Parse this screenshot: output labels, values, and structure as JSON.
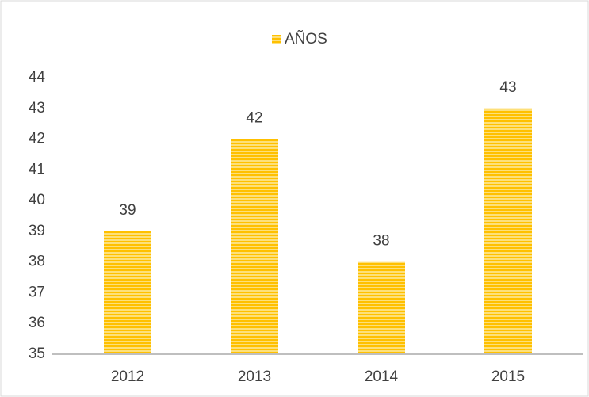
{
  "chart_data": {
    "type": "bar",
    "categories": [
      "2012",
      "2013",
      "2014",
      "2015"
    ],
    "series": [
      {
        "name": "AÑOS",
        "color": "#ffc000",
        "values": [
          39,
          42,
          38,
          43
        ]
      }
    ],
    "ylim": [
      35,
      44
    ],
    "yticks": [
      35,
      36,
      37,
      38,
      39,
      40,
      41,
      42,
      43,
      44
    ],
    "grid": false,
    "legend": "top",
    "data_labels": true
  }
}
